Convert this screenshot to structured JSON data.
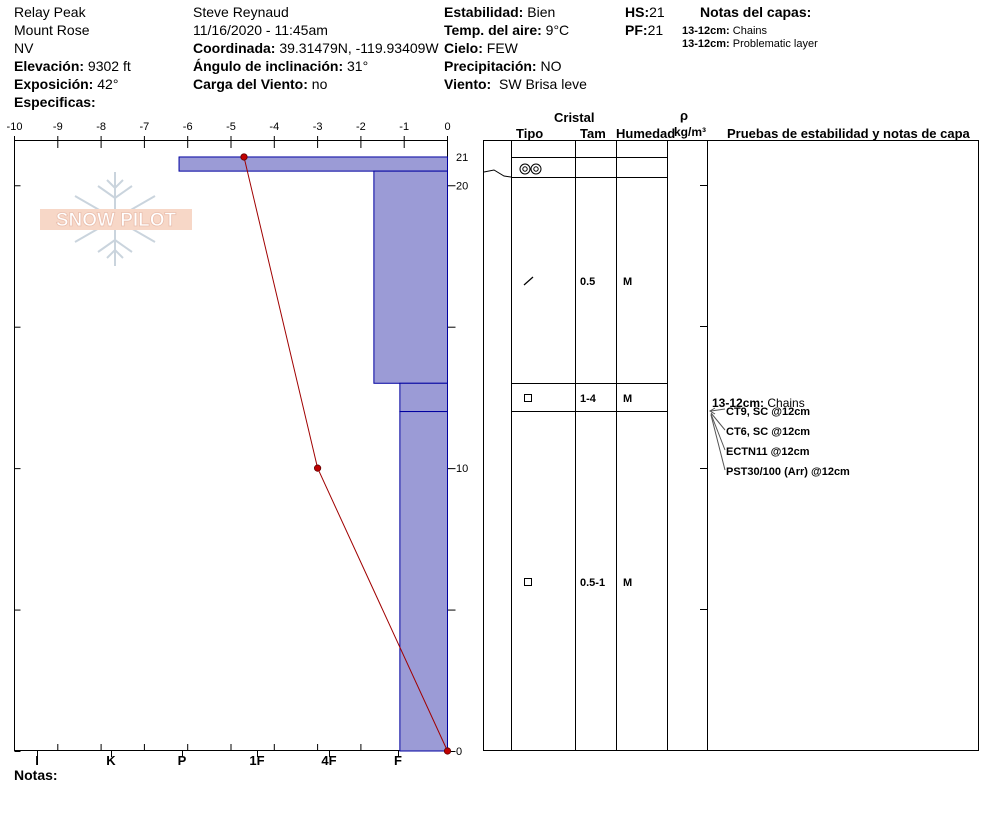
{
  "header": {
    "site": "Relay Peak",
    "range": "Mount Rose",
    "state": "NV",
    "elevation_label": "Elevación:",
    "elevation_value": "9302 ft",
    "aspect_label": "Exposición:",
    "aspect_value": "42°",
    "specifics_label": "Especificas:",
    "observer": "Steve Reynaud",
    "datetime": "11/16/2020 - 11:45am",
    "coord_label": "Coordinada:",
    "coord_value": "39.31479N, -119.93409W",
    "slope_label": "Ángulo de inclinación:",
    "slope_value": "31°",
    "windload_label": "Carga del Viento:",
    "windload_value": "no",
    "stability_label": "Estabilidad:",
    "stability_value": "Bien",
    "airtemp_label": "Temp. del aire:",
    "airtemp_value": "9°C",
    "sky_label": "Cielo:",
    "sky_value": "FEW",
    "precip_label": "Precipitación:",
    "precip_value": "NO",
    "wind_label": "Viento:",
    "wind_value": "SW",
    "wind_desc": "Brisa leve",
    "hs_label": "HS:",
    "hs_value": "21",
    "pf_label": "PF:",
    "pf_value": "21",
    "layer_notes_title": "Notas del capas:",
    "layer_notes": [
      {
        "depth": "13-12cm:",
        "text": "Chains"
      },
      {
        "depth": "13-12cm:",
        "text": "Problematic layer"
      }
    ]
  },
  "footer": {
    "notes_label": "Notas:"
  },
  "logo": {
    "text": "SNOW PILOT"
  },
  "colors": {
    "hardness_fill": "#9b9bd6",
    "hardness_edge": "#0000a0",
    "temp_line": "#a00000"
  },
  "table": {
    "cristal_label": "Cristal",
    "tipo_label": "Tipo",
    "tam_label": "Tam",
    "humedad_label": "Humedad",
    "rho_label": "ρ",
    "density_unit": "kg/m³",
    "tests_label": "Pruebas de estabilidad y notas de capa",
    "layers": [
      {
        "top": 21,
        "bottom": 20.5,
        "form": "",
        "size": "",
        "moisture": ""
      },
      {
        "top": 20.5,
        "bottom": 20.0,
        "form": "melt-forms",
        "size": "",
        "moisture": ""
      },
      {
        "top": 20.0,
        "bottom": 13.0,
        "form": "decomposing",
        "size": "0.5",
        "moisture": "M"
      },
      {
        "top": 13.0,
        "bottom": 12.0,
        "form": "faceted",
        "size": "1-4",
        "moisture": "M"
      },
      {
        "top": 12.0,
        "bottom": 0,
        "form": "faceted",
        "size": "0.5-1",
        "moisture": "M"
      }
    ],
    "test_note_depth": "13-12cm:",
    "test_note_text": "Chains",
    "tests": [
      "CT9, SC @12cm",
      "CT6, SC @12cm",
      "ECTN11 @12cm",
      "PST30/100 (Arr) @12cm"
    ]
  },
  "chart_data": {
    "type": "snow-profile",
    "temperature_axis": {
      "min": -10,
      "max": 0,
      "ticks": [
        -10,
        -9,
        -8,
        -7,
        -6,
        -5,
        -4,
        -3,
        -2,
        -1,
        0
      ]
    },
    "depth_axis": {
      "min": 0,
      "max": 21.6,
      "labels": [
        0,
        10,
        20,
        21
      ]
    },
    "hardness_axis": {
      "labels": [
        "I",
        "K",
        "P",
        "1F",
        "4F",
        "F"
      ]
    },
    "hardness_layers": [
      {
        "top": 21.0,
        "bottom": 20.5,
        "temp_value": -6.2
      },
      {
        "top": 20.5,
        "bottom": 13.0,
        "temp_value": -1.7
      },
      {
        "top": 13.0,
        "bottom": 12.0,
        "temp_value": -1.1
      },
      {
        "top": 12.0,
        "bottom": 0.0,
        "temp_value": -1.1
      }
    ],
    "temperature_profile": [
      {
        "depth": 21.0,
        "temp": -4.7
      },
      {
        "depth": 10.0,
        "temp": -3.0
      },
      {
        "depth": 0.0,
        "temp": 0.0
      }
    ]
  }
}
